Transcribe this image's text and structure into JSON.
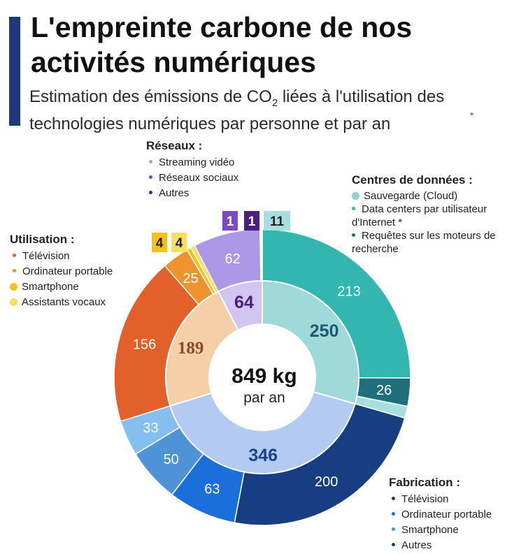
{
  "header": {
    "title": "L'empreinte carbone de nos activités numériques",
    "subtitle_part1": "Estimation des émissions de CO",
    "subtitle_sub": "2",
    "subtitle_part2": " liées à l'utilisation des technologies numériques par personne et par an",
    "asterisk": "*"
  },
  "center": {
    "total": "849 kg",
    "unit": "par an"
  },
  "legends": {
    "reseaux": {
      "heading": "Réseaux :",
      "items": [
        "Streaming vidéo",
        "Réseaux sociaux",
        "Autres"
      ]
    },
    "utilisation": {
      "heading": "Utilisation :",
      "items": [
        "Télévision",
        "Ordinateur portable",
        "Smartphone",
        "Assistants vocaux"
      ]
    },
    "centres": {
      "heading": "Centres de données :",
      "items": [
        "Sauvegarde (Cloud)",
        "Data centers par utilisateur d'Internet *",
        "Requêtes sur les moteurs de recherche"
      ]
    },
    "fabrication": {
      "heading": "Fabrication :",
      "items": [
        "Télévision",
        "Ordinateur portable",
        "Smartphone",
        "Autres"
      ]
    }
  },
  "chart_data": {
    "type": "pie",
    "total": 849,
    "unit": "kg",
    "inner_ring": [
      {
        "name": "Centres de données",
        "value": 250,
        "color": "#9fd9d9"
      },
      {
        "name": "Fabrication",
        "value": 346,
        "color": "#b3cbf2"
      },
      {
        "name": "Utilisation",
        "value": 189,
        "color": "#f5cfa8"
      },
      {
        "name": "Réseaux",
        "value": 64,
        "color": "#d2c6f0"
      }
    ],
    "outer_ring": [
      {
        "group": "Centres de données",
        "name": "Sauvegarde (Cloud)",
        "value": 213,
        "color": "#33b5b0"
      },
      {
        "group": "Centres de données",
        "name": "Data centers par utilisateur d'Internet",
        "value": 26,
        "color": "#1e6f7a"
      },
      {
        "group": "Centres de données",
        "name": "Requêtes sur les moteurs de recherche",
        "value": 11,
        "color": "#a9dede"
      },
      {
        "group": "Fabrication",
        "name": "Télévision",
        "value": 200,
        "color": "#173e80"
      },
      {
        "group": "Fabrication",
        "name": "Ordinateur portable",
        "value": 63,
        "color": "#1a6fd8"
      },
      {
        "group": "Fabrication",
        "name": "Smartphone",
        "value": 50,
        "color": "#4d93d6"
      },
      {
        "group": "Fabrication",
        "name": "Autres",
        "value": 33,
        "color": "#85bff0"
      },
      {
        "group": "Utilisation",
        "name": "Télévision",
        "value": 156,
        "color": "#e2612b"
      },
      {
        "group": "Utilisation",
        "name": "Ordinateur portable",
        "value": 25,
        "color": "#ef932e"
      },
      {
        "group": "Utilisation",
        "name": "Smartphone",
        "value": 4,
        "color": "#f2c21b"
      },
      {
        "group": "Utilisation",
        "name": "Assistants vocaux",
        "value": 4,
        "color": "#f6e05a"
      },
      {
        "group": "Réseaux",
        "name": "Streaming vidéo",
        "value": 62,
        "color": "#ab98e6"
      },
      {
        "group": "Réseaux",
        "name": "Réseaux sociaux",
        "value": 1,
        "color": "#7a49c4"
      },
      {
        "group": "Réseaux",
        "name": "Autres",
        "value": 1,
        "color": "#4a1f80"
      }
    ],
    "small_value_callouts": [
      "4",
      "4",
      "1",
      "1",
      "11"
    ]
  }
}
